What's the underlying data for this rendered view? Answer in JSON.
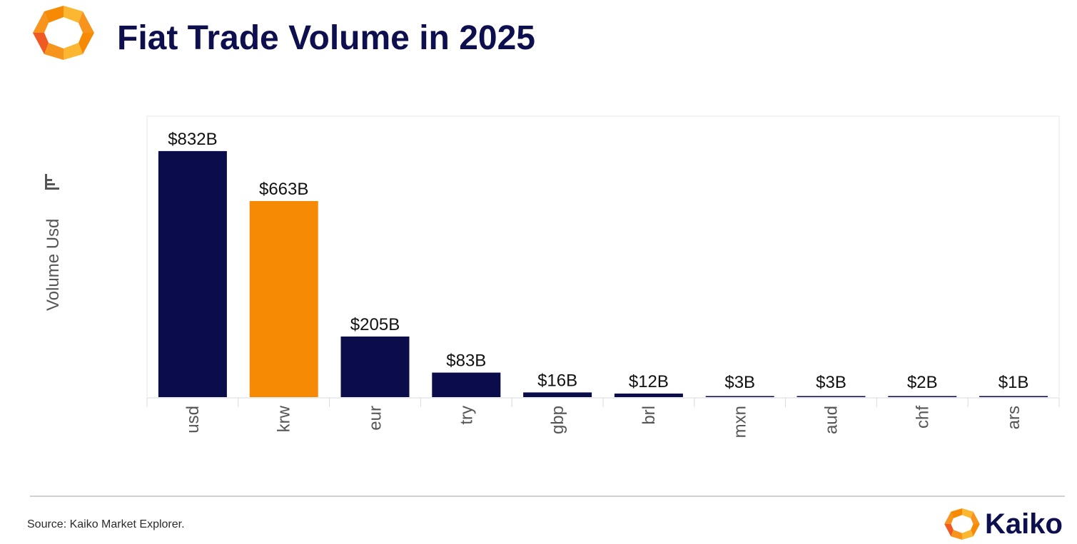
{
  "header": {
    "title": "Fiat Trade Volume in 2025",
    "logo_icon": "kaiko-logo-icon"
  },
  "footer": {
    "source": "Source: Kaiko Market Explorer.",
    "brand_name": "Kaiko",
    "brand_icon": "kaiko-logo-icon"
  },
  "colors": {
    "navy": "#0b0d4a",
    "orange": "#f78a05",
    "logo_orange": "#f7941d",
    "logo_yellow": "#fbb731",
    "logo_red": "#f05a22",
    "title": "#0e0f4f"
  },
  "chart_data": {
    "type": "bar",
    "title": "Fiat Trade Volume in 2025",
    "xlabel": "",
    "ylabel": "Volume Usd",
    "ylabel_icon": "bar-chart-icon",
    "categories": [
      "usd",
      "krw",
      "eur",
      "try",
      "gbp",
      "brl",
      "mxn",
      "aud",
      "chf",
      "ars"
    ],
    "values": [
      832,
      663,
      205,
      83,
      16,
      12,
      3,
      3,
      2,
      1
    ],
    "unit": "B USD",
    "data_labels": [
      "$832B",
      "$663B",
      "$205B",
      "$83B",
      "$16B",
      "$12B",
      "$3B",
      "$3B",
      "$2B",
      "$1B"
    ],
    "bar_colors": [
      "#0b0d4a",
      "#f78a05",
      "#0b0d4a",
      "#0b0d4a",
      "#0b0d4a",
      "#0b0d4a",
      "#0b0d4a",
      "#0b0d4a",
      "#0b0d4a",
      "#0b0d4a"
    ],
    "highlight_category": "krw",
    "ylim": [
      0,
      950
    ],
    "y_ticks_shown": false,
    "grid": false,
    "legend": "none"
  }
}
